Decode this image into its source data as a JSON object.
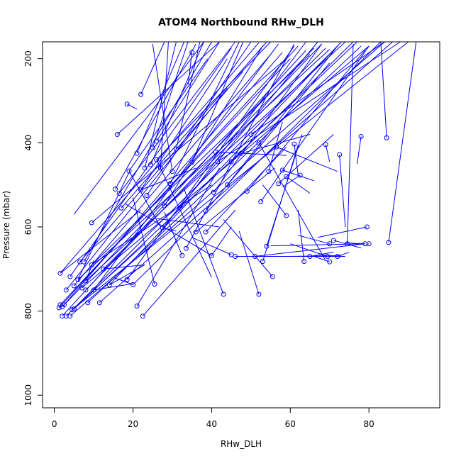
{
  "chart_data": {
    "type": "scatter",
    "title": "ATOM4 Northbound RHw_DLH",
    "xlabel": "RHw_DLH",
    "ylabel": "Pressure (mbar)",
    "xlim": [
      -3,
      98
    ],
    "ylim": [
      1030,
      160
    ],
    "y_reversed": true,
    "xticks": [
      0,
      20,
      40,
      60,
      80
    ],
    "yticks": [
      200,
      400,
      600,
      800,
      1000
    ],
    "grid": false,
    "legend": "none",
    "line_color": "#0000FF",
    "marker": "open-circle",
    "points": [
      [
        1.5,
        785
      ],
      [
        2.5,
        785
      ],
      [
        2.0,
        790
      ],
      [
        1.2,
        792
      ],
      [
        3.0,
        812
      ],
      [
        2.0,
        812
      ],
      [
        4.0,
        812
      ],
      [
        5.0,
        795
      ],
      [
        4.5,
        797
      ],
      [
        1.5,
        710
      ],
      [
        3.0,
        750
      ],
      [
        4.0,
        718
      ],
      [
        5.0,
        740
      ],
      [
        6.0,
        725
      ],
      [
        6.5,
        683
      ],
      [
        7.5,
        683
      ],
      [
        7.0,
        745
      ],
      [
        8.0,
        728
      ],
      [
        8.0,
        750
      ],
      [
        8.5,
        780
      ],
      [
        9.5,
        690
      ],
      [
        9.5,
        590
      ],
      [
        10.0,
        750
      ],
      [
        11.5,
        780
      ],
      [
        12.5,
        700
      ],
      [
        14.0,
        738
      ],
      [
        15.5,
        510
      ],
      [
        16.5,
        520
      ],
      [
        17.0,
        555
      ],
      [
        18.5,
        725
      ],
      [
        16.0,
        380
      ],
      [
        18.5,
        308
      ],
      [
        19.0,
        467
      ],
      [
        20.0,
        737
      ],
      [
        21.0,
        788
      ],
      [
        22.0,
        285
      ],
      [
        22.5,
        812
      ],
      [
        21.0,
        425
      ],
      [
        22.0,
        512
      ],
      [
        23.0,
        460
      ],
      [
        23.5,
        525
      ],
      [
        24.5,
        452
      ],
      [
        25.0,
        412
      ],
      [
        25.5,
        736
      ],
      [
        26.0,
        396
      ],
      [
        26.0,
        440
      ],
      [
        27.0,
        460
      ],
      [
        27.5,
        602
      ],
      [
        28.0,
        550
      ],
      [
        29.5,
        497
      ],
      [
        30.0,
        468
      ],
      [
        31.0,
        415
      ],
      [
        32.0,
        555
      ],
      [
        32.5,
        668
      ],
      [
        33.5,
        651
      ],
      [
        35.0,
        185
      ],
      [
        35.0,
        446
      ],
      [
        36.0,
        612
      ],
      [
        38.5,
        612
      ],
      [
        38.5,
        562
      ],
      [
        40.0,
        668
      ],
      [
        40.5,
        518
      ],
      [
        41.0,
        422
      ],
      [
        41.5,
        445
      ],
      [
        43.0,
        760
      ],
      [
        44.0,
        500
      ],
      [
        45.0,
        445
      ],
      [
        45.0,
        666
      ],
      [
        46.0,
        670
      ],
      [
        47.5,
        425
      ],
      [
        49.0,
        515
      ],
      [
        50.0,
        380
      ],
      [
        51.0,
        670
      ],
      [
        52.0,
        760
      ],
      [
        52.0,
        400
      ],
      [
        52.5,
        540
      ],
      [
        53.0,
        682
      ],
      [
        54.0,
        646
      ],
      [
        54.5,
        468
      ],
      [
        55.5,
        718
      ],
      [
        56.5,
        410
      ],
      [
        57.0,
        497
      ],
      [
        58.0,
        465
      ],
      [
        59.0,
        480
      ],
      [
        59.0,
        573
      ],
      [
        61.0,
        403
      ],
      [
        62.5,
        477
      ],
      [
        63.5,
        682
      ],
      [
        65.0,
        670
      ],
      [
        69.0,
        404
      ],
      [
        69.5,
        670
      ],
      [
        70.0,
        640
      ],
      [
        70.0,
        683
      ],
      [
        71.0,
        632
      ],
      [
        72.0,
        670
      ],
      [
        72.5,
        428
      ],
      [
        74.5,
        640
      ],
      [
        78.0,
        385
      ],
      [
        79.0,
        640
      ],
      [
        79.5,
        600
      ],
      [
        80.0,
        640
      ],
      [
        84.5,
        388
      ],
      [
        85.0,
        637
      ]
    ],
    "segments": [
      [
        1.5,
        785,
        60,
        200
      ],
      [
        2.5,
        785,
        66,
        175
      ],
      [
        2.0,
        790,
        58,
        185
      ],
      [
        1.2,
        792,
        62,
        170
      ],
      [
        3.0,
        812,
        72,
        170
      ],
      [
        2.0,
        812,
        64,
        180
      ],
      [
        4.0,
        812,
        84,
        160
      ],
      [
        5.0,
        795,
        77,
        160
      ],
      [
        4.5,
        797,
        90,
        160
      ],
      [
        1.5,
        710,
        52,
        162
      ],
      [
        3.0,
        750,
        44,
        270
      ],
      [
        4.0,
        718,
        45,
        175
      ],
      [
        5.0,
        740,
        55,
        190
      ],
      [
        6.0,
        725,
        70,
        178
      ],
      [
        6.5,
        683,
        48,
        230
      ],
      [
        7.5,
        683,
        40,
        160
      ],
      [
        7.0,
        745,
        80,
        170
      ],
      [
        8.0,
        728,
        74,
        160
      ],
      [
        8.0,
        750,
        68,
        165
      ],
      [
        8.5,
        780,
        78,
        170
      ],
      [
        9.5,
        690,
        65,
        190
      ],
      [
        9.5,
        590,
        59,
        200
      ],
      [
        10.0,
        750,
        57,
        165
      ],
      [
        11.5,
        780,
        86,
        160
      ],
      [
        12.5,
        700,
        69,
        175
      ],
      [
        14.0,
        738,
        73,
        160
      ],
      [
        15.5,
        510,
        36,
        165
      ],
      [
        16.5,
        520,
        46,
        160
      ],
      [
        17.0,
        555,
        54,
        160
      ],
      [
        18.5,
        725,
        61,
        170
      ],
      [
        16.0,
        380,
        42,
        160
      ],
      [
        18.5,
        308,
        21,
        320
      ],
      [
        19.0,
        467,
        39,
        200
      ],
      [
        20.0,
        737,
        83,
        160
      ],
      [
        21.0,
        788,
        42,
        460
      ],
      [
        22.0,
        285,
        28,
        160
      ],
      [
        22.5,
        812,
        46,
        560
      ],
      [
        21.0,
        425,
        33,
        160
      ],
      [
        22.0,
        512,
        44,
        200
      ],
      [
        23.0,
        460,
        31,
        160
      ],
      [
        23.5,
        525,
        50,
        160
      ],
      [
        24.5,
        452,
        38,
        160
      ],
      [
        25.0,
        412,
        34,
        160
      ],
      [
        25.5,
        736,
        20,
        530
      ],
      [
        26.0,
        396,
        42,
        160
      ],
      [
        26.0,
        440,
        55,
        160
      ],
      [
        27.0,
        460,
        29,
        160
      ],
      [
        27.5,
        602,
        67,
        160
      ],
      [
        28.0,
        550,
        53,
        170
      ],
      [
        29.5,
        497,
        47,
        160
      ],
      [
        30.0,
        468,
        25,
        165
      ],
      [
        31.0,
        415,
        37,
        160
      ],
      [
        32.0,
        555,
        64,
        160
      ],
      [
        32.5,
        668,
        28,
        565
      ],
      [
        33.5,
        651,
        61,
        165
      ],
      [
        35.0,
        185,
        34,
        262
      ],
      [
        35.0,
        446,
        48,
        160
      ],
      [
        36.0,
        612,
        56,
        460
      ],
      [
        38.5,
        612,
        59,
        410
      ],
      [
        38.5,
        562,
        70,
        210
      ],
      [
        40.0,
        668,
        18,
        545
      ],
      [
        40.5,
        518,
        68,
        165
      ],
      [
        41.0,
        422,
        59,
        430
      ],
      [
        41.5,
        445,
        88,
        160
      ],
      [
        43.0,
        760,
        33,
        510
      ],
      [
        44.0,
        500,
        72,
        170
      ],
      [
        45.0,
        445,
        76,
        160
      ],
      [
        45.0,
        666,
        35,
        625
      ],
      [
        46.0,
        670,
        74,
        670
      ],
      [
        47.5,
        425,
        65,
        380
      ],
      [
        49.0,
        515,
        79,
        180
      ],
      [
        50.0,
        380,
        84,
        155
      ],
      [
        51.0,
        670,
        79,
        640
      ],
      [
        52.0,
        760,
        47,
        610
      ],
      [
        52.0,
        400,
        69,
        680
      ],
      [
        52.5,
        540,
        80,
        170
      ],
      [
        53.0,
        682,
        62,
        405
      ],
      [
        54.0,
        646,
        63,
        380
      ],
      [
        54.5,
        468,
        58,
        350
      ],
      [
        55.5,
        718,
        43,
        582
      ],
      [
        56.5,
        410,
        72,
        468
      ],
      [
        57.0,
        497,
        71,
        380
      ],
      [
        58.0,
        465,
        66,
        490
      ],
      [
        59.0,
        480,
        65,
        520
      ],
      [
        59.0,
        573,
        53,
        500
      ],
      [
        61.0,
        403,
        62,
        478
      ],
      [
        62.5,
        477,
        58,
        505
      ],
      [
        63.5,
        682,
        62,
        560
      ],
      [
        65.0,
        670,
        71,
        660
      ],
      [
        69.0,
        404,
        70,
        445
      ],
      [
        69.5,
        670,
        60,
        640
      ],
      [
        70.0,
        640,
        62,
        620
      ],
      [
        70.0,
        683,
        66,
        670
      ],
      [
        71.0,
        632,
        78,
        650
      ],
      [
        72.0,
        670,
        75,
        660
      ],
      [
        72.5,
        428,
        74,
        600
      ],
      [
        74.5,
        640,
        76,
        165
      ],
      [
        78.0,
        385,
        77,
        450
      ],
      [
        79.0,
        640,
        74,
        638
      ],
      [
        79.5,
        600,
        67,
        625
      ],
      [
        80.0,
        640,
        79,
        645
      ],
      [
        84.5,
        388,
        83,
        160
      ],
      [
        85.0,
        637,
        92,
        160
      ],
      [
        10.0,
        750,
        20,
        735
      ],
      [
        8.0,
        728,
        10,
        680
      ],
      [
        14.0,
        738,
        23,
        690
      ],
      [
        6.0,
        725,
        19,
        470
      ],
      [
        20.0,
        737,
        15,
        720
      ],
      [
        12.5,
        700,
        23,
        690
      ],
      [
        9.5,
        690,
        40,
        500
      ],
      [
        1.5,
        710,
        22,
        560
      ],
      [
        4.5,
        797,
        23,
        640
      ],
      [
        27.5,
        602,
        31,
        610
      ],
      [
        40.0,
        668,
        45,
        600
      ],
      [
        60.0,
        670,
        73,
        668
      ],
      [
        55.0,
        645,
        79,
        640
      ],
      [
        5.0,
        570,
        38,
        160
      ],
      [
        42.0,
        600,
        26,
        580
      ],
      [
        22.0,
        512,
        36,
        460
      ],
      [
        19.0,
        467,
        27,
        600
      ],
      [
        26.0,
        440,
        40,
        720
      ]
    ]
  }
}
